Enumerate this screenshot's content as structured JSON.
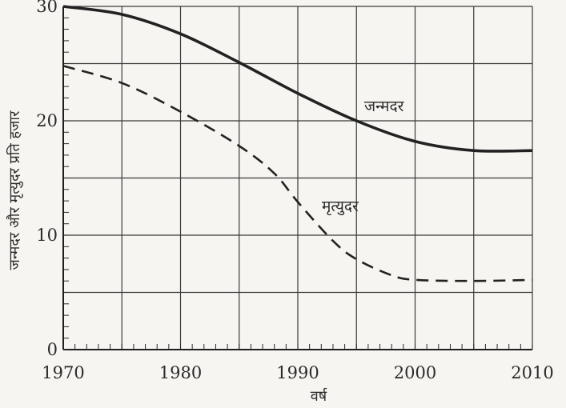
{
  "chart_data": {
    "type": "line",
    "xlabel": "वर्ष",
    "ylabel": "जन्मदर और मृत्युदर प्रति हजार",
    "xlim": [
      1970,
      2010
    ],
    "ylim": [
      0,
      30
    ],
    "x_ticks": [
      "1970",
      "1980",
      "1990",
      "2000",
      "2010"
    ],
    "y_ticks": [
      "0",
      "10",
      "20",
      "30"
    ],
    "grid": true,
    "series": [
      {
        "name": "जन्मदर",
        "style": "solid",
        "color": "#222222",
        "x": [
          1970,
          1975,
          1980,
          1985,
          1990,
          1995,
          2000,
          2005,
          2010
        ],
        "y": [
          30.0,
          29.3,
          27.6,
          25.1,
          22.4,
          20.0,
          18.2,
          17.4,
          17.4
        ]
      },
      {
        "name": "मृत्युदर",
        "style": "dashed",
        "color": "#222222",
        "x": [
          1970,
          1975,
          1980,
          1985,
          1988,
          1990,
          1993,
          1995,
          1998,
          2000,
          2005,
          2010
        ],
        "y": [
          24.8,
          23.3,
          20.8,
          17.8,
          15.4,
          12.9,
          9.5,
          7.9,
          6.5,
          6.1,
          6.0,
          6.1
        ]
      }
    ]
  }
}
